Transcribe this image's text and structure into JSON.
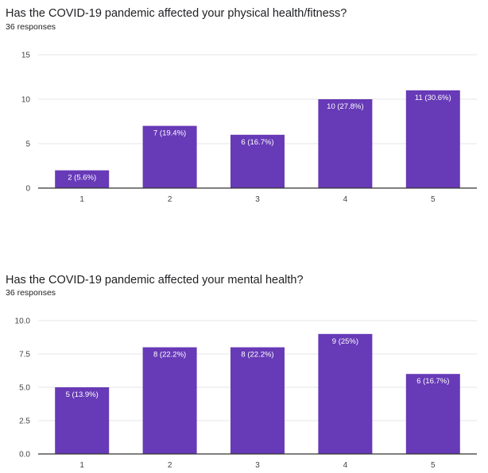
{
  "colors": {
    "bar": "#673ab7",
    "grid": "#e6e6e6",
    "axis": "#333333",
    "text": "#202124"
  },
  "charts": [
    {
      "title": "Has the COVID-19 pandemic affected your physical health/fitness?",
      "subtitle": "36 responses"
    },
    {
      "title": "Has the COVID-19 pandemic affected your mental health?",
      "subtitle": "36 responses"
    }
  ],
  "chart_data": [
    {
      "type": "bar",
      "title": "Has the COVID-19 pandemic affected your physical health/fitness?",
      "categories": [
        "1",
        "2",
        "3",
        "4",
        "5"
      ],
      "values": [
        2,
        7,
        6,
        10,
        11
      ],
      "data_labels": [
        "2 (5.6%)",
        "7 (19.4%)",
        "6 (16.7%)",
        "10 (27.8%)",
        "11 (30.6%)"
      ],
      "yticks": [
        "0",
        "5",
        "10",
        "15"
      ],
      "ylim": [
        0,
        15
      ],
      "grid": true,
      "legend": "none"
    },
    {
      "type": "bar",
      "title": "Has the COVID-19 pandemic affected your mental health?",
      "categories": [
        "1",
        "2",
        "3",
        "4",
        "5"
      ],
      "values": [
        5,
        8,
        8,
        9,
        6
      ],
      "data_labels": [
        "5 (13.9%)",
        "8 (22.2%)",
        "8 (22.2%)",
        "9 (25%)",
        "6 (16.7%)"
      ],
      "yticks": [
        "0.0",
        "2.5",
        "5.0",
        "7.5",
        "10.0"
      ],
      "ylim": [
        0,
        10
      ],
      "grid": true,
      "legend": "none"
    }
  ]
}
